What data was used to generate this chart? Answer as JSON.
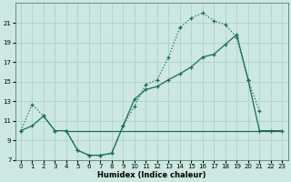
{
  "bg_color": "#cce8e0",
  "grid_color": "#aacccc",
  "line_color": "#1a6b5a",
  "xlabel": "Humidex (Indice chaleur)",
  "xlim": [
    -0.5,
    23.5
  ],
  "ylim": [
    7,
    23
  ],
  "xticks": [
    0,
    1,
    2,
    3,
    4,
    5,
    6,
    7,
    8,
    9,
    10,
    11,
    12,
    13,
    14,
    15,
    16,
    17,
    18,
    19,
    20,
    21,
    22,
    23
  ],
  "yticks": [
    7,
    9,
    11,
    13,
    15,
    17,
    19,
    21
  ],
  "series": [
    {
      "x": [
        0,
        1,
        2,
        3,
        4,
        5,
        6,
        7,
        8,
        9,
        10,
        11,
        12,
        13,
        14,
        15,
        16,
        17,
        18,
        19,
        20,
        21
      ],
      "y": [
        10.0,
        12.7,
        11.5,
        10.0,
        10.0,
        8.0,
        7.5,
        7.5,
        7.7,
        10.5,
        12.5,
        14.7,
        15.2,
        17.5,
        20.5,
        21.5,
        22.0,
        21.2,
        20.8,
        19.5,
        15.2,
        12.0
      ],
      "linestyle": ":",
      "marker": "+"
    },
    {
      "x": [
        0,
        1,
        2,
        3,
        4,
        5,
        6,
        7,
        8,
        9,
        10,
        11,
        12,
        13,
        14,
        15,
        16,
        17,
        18,
        19,
        20,
        21,
        22,
        23
      ],
      "y": [
        10.0,
        10.5,
        11.5,
        10.0,
        10.0,
        8.0,
        7.5,
        7.5,
        7.7,
        10.5,
        13.2,
        14.2,
        14.5,
        15.2,
        15.8,
        16.5,
        17.5,
        17.8,
        18.8,
        19.8,
        15.2,
        10.0,
        10.0,
        10.0
      ],
      "linestyle": "-",
      "marker": "+"
    },
    {
      "x": [
        4,
        23
      ],
      "y": [
        10.0,
        10.0
      ],
      "linestyle": "-",
      "marker": null
    }
  ]
}
